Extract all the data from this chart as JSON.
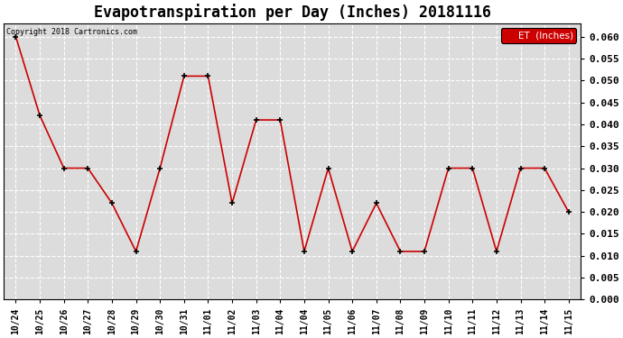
{
  "title": "Evapotranspiration per Day (Inches) 20181116",
  "copyright_text": "Copyright 2018 Cartronics.com",
  "legend_label": "ET  (Inches)",
  "x_labels": [
    "10/24",
    "10/25",
    "10/26",
    "10/27",
    "10/28",
    "10/29",
    "10/30",
    "10/31",
    "11/01",
    "11/02",
    "11/03",
    "11/04",
    "11/04",
    "11/05",
    "11/06",
    "11/07",
    "11/08",
    "11/09",
    "11/10",
    "11/11",
    "11/12",
    "11/13",
    "11/14",
    "11/15"
  ],
  "y_values": [
    0.06,
    0.042,
    0.03,
    0.03,
    0.022,
    0.011,
    0.03,
    0.051,
    0.051,
    0.022,
    0.041,
    0.041,
    0.011,
    0.03,
    0.011,
    0.022,
    0.011,
    0.011,
    0.03,
    0.03,
    0.011,
    0.03,
    0.03,
    0.02
  ],
  "line_color": "#cc0000",
  "marker_color": "#000000",
  "ylim": [
    0.0,
    0.063
  ],
  "yticks": [
    0.0,
    0.005,
    0.01,
    0.015,
    0.02,
    0.025,
    0.03,
    0.035,
    0.04,
    0.045,
    0.05,
    0.055,
    0.06
  ],
  "background_color": "#dcdcdc",
  "grid_color": "#ffffff",
  "title_fontsize": 12,
  "legend_bg": "#cc0000",
  "legend_fg": "#ffffff"
}
